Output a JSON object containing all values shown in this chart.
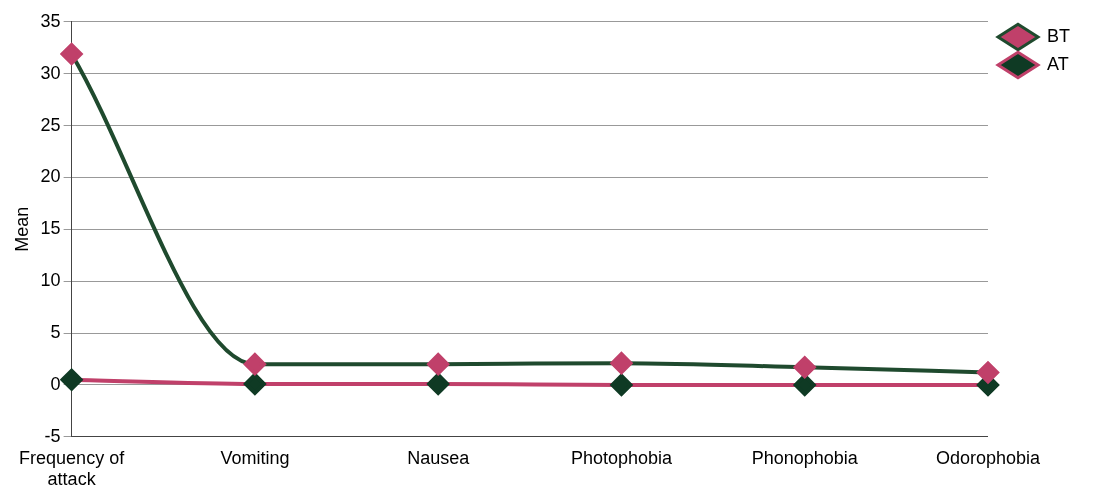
{
  "chart_data": {
    "type": "line",
    "ylabel": "Mean",
    "categories": [
      "Frequency of attack",
      "Vomiting",
      "Nausea",
      "Photophobia",
      "Phonophobia",
      "Odorophobia"
    ],
    "series": [
      {
        "name": "BT",
        "color": "#1f4a2e",
        "colors": [
          "#c0406a",
          "#c0406a",
          "#c0406a",
          "#c0406a",
          "#c0406a",
          "#c0406a"
        ],
        "values": [
          31.9,
          2.0,
          2.0,
          2.1,
          1.7,
          1.2
        ]
      },
      {
        "name": "AT",
        "color": "#c0406a",
        "colors": [
          "#0f3a24",
          "#0f3a24",
          "#0f3a24",
          "#0f3a24",
          "#0f3a24",
          "#0f3a24"
        ],
        "values": [
          0.5,
          0.1,
          0.1,
          0.0,
          0.0,
          0.0
        ]
      }
    ],
    "ylim": [
      -5,
      35
    ],
    "yticks": [
      -5,
      0,
      5,
      10,
      15,
      20,
      25,
      30,
      35
    ],
    "grid": "y",
    "legend": "top right",
    "marker": "diamond",
    "line_style": "solid"
  }
}
